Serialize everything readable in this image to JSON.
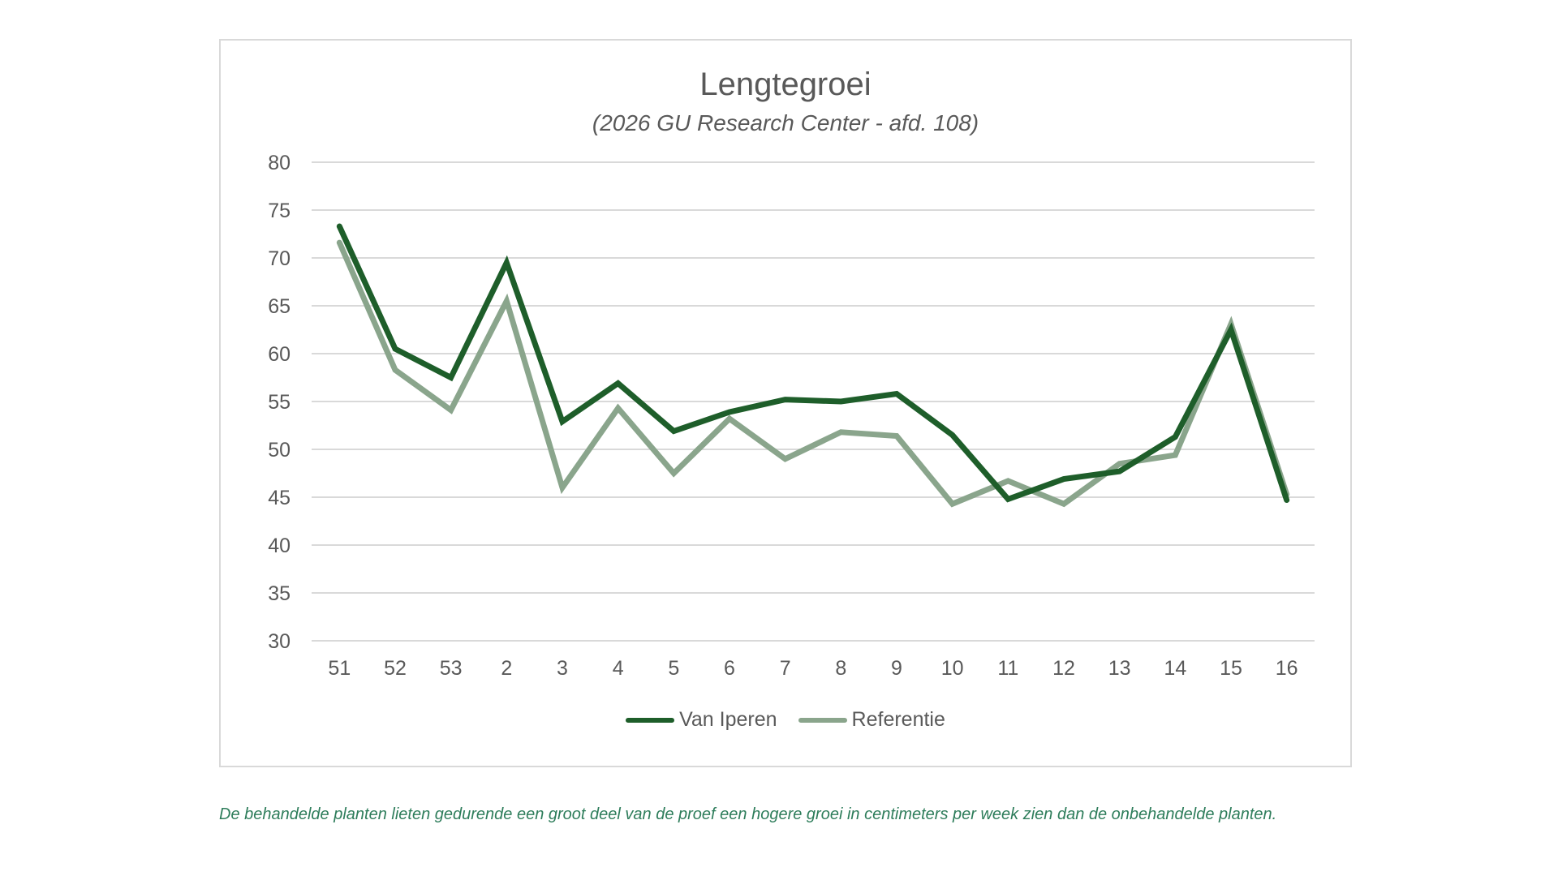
{
  "chart_data": {
    "type": "line",
    "title": "Lengtegroei",
    "subtitle": "(2026 GU Research Center - afd. 108)",
    "xlabel": "",
    "ylabel": "",
    "categories": [
      "51",
      "52",
      "53",
      "2",
      "3",
      "4",
      "5",
      "6",
      "7",
      "8",
      "9",
      "10",
      "11",
      "12",
      "13",
      "14",
      "15",
      "16"
    ],
    "ylim": [
      30,
      80
    ],
    "yticks": [
      "80",
      "75",
      "70",
      "65",
      "60",
      "55",
      "50",
      "45",
      "40",
      "35",
      "30"
    ],
    "grid": true,
    "legend_position": "bottom",
    "series": [
      {
        "name": "Van Iperen",
        "color": "#1e5e2a",
        "values": [
          73.3,
          60.5,
          57.5,
          69.5,
          52.9,
          56.9,
          51.9,
          53.9,
          55.2,
          55.0,
          55.8,
          51.5,
          44.8,
          46.9,
          47.7,
          51.3,
          62.5,
          44.7
        ]
      },
      {
        "name": "Referentie",
        "color": "#8aa58c",
        "values": [
          71.6,
          58.3,
          54.1,
          65.5,
          46.0,
          54.3,
          47.5,
          53.2,
          49.0,
          51.8,
          51.4,
          44.3,
          46.7,
          44.3,
          48.5,
          49.4,
          63.1,
          45.3
        ]
      }
    ]
  },
  "caption": "De behandelde planten lieten gedurende een groot deel van de proef een hogere groei in centimeters per week zien dan de onbehandelde planten."
}
